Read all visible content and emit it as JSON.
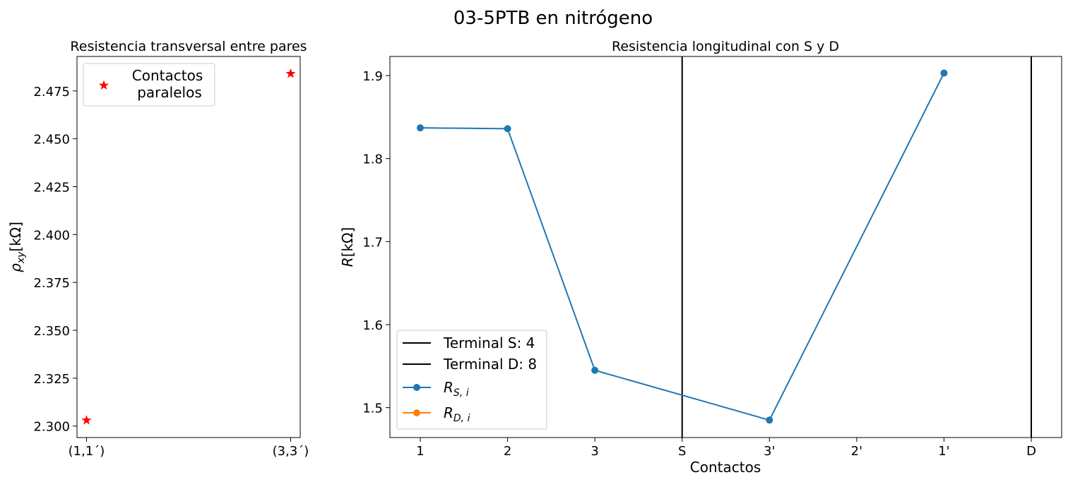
{
  "suptitle": "03-5PTB en nitrógeno",
  "colors": {
    "red": "#ff0000",
    "blue": "#1f77b4",
    "orange": "#ff7f0e",
    "black": "#000000"
  },
  "chart_data": [
    {
      "type": "scatter",
      "title": "Resistencia transversal entre pares",
      "ylabel_main": "ρ",
      "ylabel_sub": "xy",
      "ylabel_rest": "[kΩ]",
      "categories": [
        "(1,1´)",
        "(3,3´)"
      ],
      "values": [
        2.303,
        2.484
      ],
      "ylim": [
        2.294,
        2.493
      ],
      "yticks": [
        2.3,
        2.325,
        2.35,
        2.375,
        2.4,
        2.425,
        2.45,
        2.475
      ],
      "ytick_labels": [
        "2.300",
        "2.325",
        "2.350",
        "2.375",
        "2.400",
        "2.425",
        "2.450",
        "2.475"
      ],
      "marker": "star",
      "legend": {
        "placement": "top-left",
        "label_line1": "Contactos",
        "label_line2": "paralelos"
      }
    },
    {
      "type": "line",
      "title": "Resistencia longitudinal con S y D",
      "xlabel": "Contactos",
      "ylabel_main": "R",
      "ylabel_rest": "[kΩ]",
      "categories": [
        "1",
        "2",
        "3",
        "S",
        "3'",
        "2'",
        "1'",
        "D"
      ],
      "ylim": [
        1.464,
        1.923
      ],
      "yticks": [
        1.5,
        1.6,
        1.7,
        1.8,
        1.9
      ],
      "ytick_labels": [
        "1.5",
        "1.6",
        "1.7",
        "1.8",
        "1.9"
      ],
      "vlines": [
        {
          "category": "S",
          "label": "Terminal S: 4"
        },
        {
          "category": "D",
          "label": "Terminal D: 8"
        }
      ],
      "series": [
        {
          "label_main": "R",
          "label_sub": "S, i",
          "points": [
            [
              "1",
              1.837
            ],
            [
              "2",
              1.836
            ],
            [
              "3",
              1.545
            ],
            [
              "3'",
              1.485
            ],
            [
              "1'",
              1.903
            ]
          ]
        },
        {
          "label_main": "R",
          "label_sub": "D, i",
          "points": []
        }
      ],
      "legend": {
        "placement": "lower-left"
      }
    }
  ]
}
